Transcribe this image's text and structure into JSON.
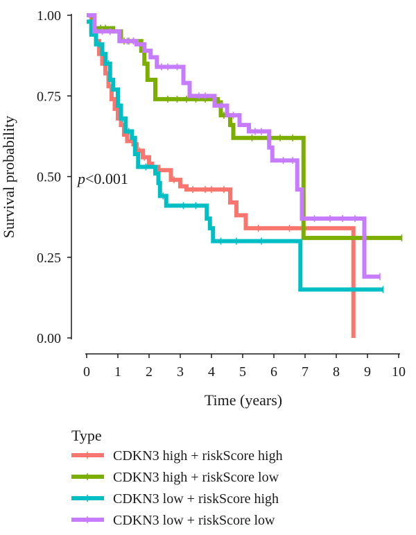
{
  "chart_data": {
    "type": "line",
    "subtype": "kaplan-meier",
    "xlabel": "Time (years)",
    "ylabel": "Survival probability",
    "xlim": [
      0,
      10
    ],
    "ylim": [
      0,
      1
    ],
    "xticks": [
      "0",
      "1",
      "2",
      "3",
      "4",
      "5",
      "6",
      "7",
      "8",
      "9",
      "10"
    ],
    "yticks": [
      "0.00",
      "0.25",
      "0.50",
      "0.75",
      "1.00"
    ],
    "annotation": {
      "prefix": "p",
      "rest": "<0.001"
    },
    "grid": false,
    "legend": {
      "title": "Type",
      "placement": "bottom"
    },
    "series": [
      {
        "name": "CDKN3 high + riskScore high",
        "color": "#F8766D",
        "steps": [
          [
            0,
            1.0
          ],
          [
            0.15,
            0.95
          ],
          [
            0.3,
            0.92
          ],
          [
            0.4,
            0.88
          ],
          [
            0.5,
            0.85
          ],
          [
            0.6,
            0.82
          ],
          [
            0.7,
            0.78
          ],
          [
            0.8,
            0.74
          ],
          [
            0.9,
            0.71
          ],
          [
            1.0,
            0.68
          ],
          [
            1.1,
            0.66
          ],
          [
            1.2,
            0.63
          ],
          [
            1.3,
            0.61
          ],
          [
            1.5,
            0.6
          ],
          [
            1.6,
            0.58
          ],
          [
            1.8,
            0.56
          ],
          [
            2.0,
            0.54
          ],
          [
            2.1,
            0.53
          ],
          [
            2.3,
            0.52
          ],
          [
            2.7,
            0.49
          ],
          [
            3.0,
            0.47
          ],
          [
            3.2,
            0.46
          ],
          [
            4.6,
            0.42
          ],
          [
            4.8,
            0.38
          ],
          [
            5.1,
            0.34
          ],
          [
            8.55,
            0.0
          ]
        ],
        "end_x": 8.55,
        "censor": [
          [
            0.55,
            0.85
          ],
          [
            0.95,
            0.71
          ],
          [
            1.25,
            0.63
          ],
          [
            1.7,
            0.58
          ],
          [
            1.85,
            0.56
          ],
          [
            2.2,
            0.52
          ],
          [
            2.8,
            0.49
          ],
          [
            3.4,
            0.46
          ],
          [
            3.8,
            0.46
          ],
          [
            4.0,
            0.46
          ],
          [
            4.4,
            0.46
          ],
          [
            5.5,
            0.34
          ],
          [
            6.5,
            0.34
          ]
        ]
      },
      {
        "name": "CDKN3 high + riskScore low",
        "color": "#7CAE00",
        "steps": [
          [
            0,
            1.0
          ],
          [
            0.2,
            0.96
          ],
          [
            0.85,
            0.95
          ],
          [
            1.1,
            0.92
          ],
          [
            1.75,
            0.89
          ],
          [
            1.85,
            0.85
          ],
          [
            1.95,
            0.8
          ],
          [
            2.2,
            0.74
          ],
          [
            4.2,
            0.73
          ],
          [
            4.3,
            0.69
          ],
          [
            4.6,
            0.66
          ],
          [
            4.7,
            0.62
          ],
          [
            6.95,
            0.31
          ]
        ],
        "end_x": 10.1,
        "censor": [
          [
            0.3,
            0.96
          ],
          [
            0.45,
            0.96
          ],
          [
            0.6,
            0.96
          ],
          [
            0.75,
            0.95
          ],
          [
            1.2,
            0.92
          ],
          [
            1.35,
            0.92
          ],
          [
            1.5,
            0.92
          ],
          [
            2.6,
            0.74
          ],
          [
            2.9,
            0.74
          ],
          [
            3.2,
            0.74
          ],
          [
            3.5,
            0.74
          ],
          [
            3.8,
            0.74
          ],
          [
            4.4,
            0.69
          ],
          [
            5.3,
            0.62
          ],
          [
            5.8,
            0.62
          ],
          [
            6.2,
            0.62
          ],
          [
            6.6,
            0.62
          ],
          [
            10.1,
            0.31
          ]
        ]
      },
      {
        "name": "CDKN3 low + riskScore high",
        "color": "#00BFC4",
        "steps": [
          [
            0,
            0.98
          ],
          [
            0.15,
            0.94
          ],
          [
            0.3,
            0.91
          ],
          [
            0.5,
            0.88
          ],
          [
            0.6,
            0.85
          ],
          [
            0.75,
            0.8
          ],
          [
            0.85,
            0.77
          ],
          [
            1.0,
            0.72
          ],
          [
            1.1,
            0.68
          ],
          [
            1.25,
            0.64
          ],
          [
            1.45,
            0.62
          ],
          [
            1.55,
            0.57
          ],
          [
            1.65,
            0.53
          ],
          [
            2.2,
            0.51
          ],
          [
            2.3,
            0.48
          ],
          [
            2.35,
            0.44
          ],
          [
            2.55,
            0.41
          ],
          [
            3.85,
            0.37
          ],
          [
            3.95,
            0.34
          ],
          [
            4.05,
            0.3
          ],
          [
            6.85,
            0.15
          ]
        ],
        "end_x": 9.5,
        "censor": [
          [
            0.4,
            0.91
          ],
          [
            0.7,
            0.85
          ],
          [
            1.05,
            0.72
          ],
          [
            1.15,
            0.68
          ],
          [
            1.35,
            0.64
          ],
          [
            1.9,
            0.53
          ],
          [
            2.45,
            0.44
          ],
          [
            3.1,
            0.41
          ],
          [
            3.5,
            0.41
          ],
          [
            4.3,
            0.3
          ],
          [
            4.8,
            0.3
          ],
          [
            5.6,
            0.3
          ],
          [
            9.5,
            0.15
          ]
        ]
      },
      {
        "name": "CDKN3 low + riskScore low",
        "color": "#C77CFF",
        "steps": [
          [
            0,
            1.0
          ],
          [
            0.25,
            0.95
          ],
          [
            1.05,
            0.92
          ],
          [
            1.6,
            0.91
          ],
          [
            1.85,
            0.89
          ],
          [
            2.05,
            0.87
          ],
          [
            2.25,
            0.84
          ],
          [
            3.1,
            0.79
          ],
          [
            3.3,
            0.75
          ],
          [
            4.1,
            0.72
          ],
          [
            4.5,
            0.69
          ],
          [
            4.9,
            0.66
          ],
          [
            5.2,
            0.64
          ],
          [
            5.85,
            0.59
          ],
          [
            5.95,
            0.55
          ],
          [
            6.75,
            0.46
          ],
          [
            6.9,
            0.37
          ],
          [
            8.9,
            0.19
          ]
        ],
        "end_x": 9.4,
        "censor": [
          [
            0.5,
            0.95
          ],
          [
            0.75,
            0.95
          ],
          [
            1.3,
            0.92
          ],
          [
            1.5,
            0.92
          ],
          [
            2.4,
            0.84
          ],
          [
            2.6,
            0.84
          ],
          [
            2.9,
            0.84
          ],
          [
            3.6,
            0.75
          ],
          [
            3.8,
            0.75
          ],
          [
            4.3,
            0.72
          ],
          [
            4.7,
            0.69
          ],
          [
            5.4,
            0.64
          ],
          [
            5.6,
            0.64
          ],
          [
            6.3,
            0.55
          ],
          [
            6.6,
            0.55
          ],
          [
            7.3,
            0.37
          ],
          [
            7.8,
            0.37
          ],
          [
            8.2,
            0.37
          ],
          [
            8.6,
            0.37
          ],
          [
            9.4,
            0.19
          ]
        ]
      }
    ]
  }
}
